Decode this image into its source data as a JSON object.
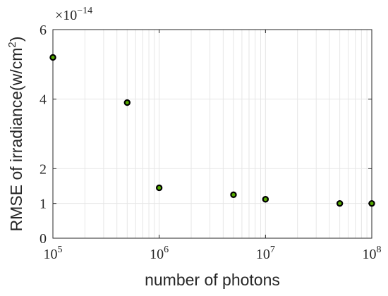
{
  "chart_data": {
    "type": "scatter",
    "x_scale": "log",
    "xlim": [
      100000,
      100000000
    ],
    "ylim": [
      0,
      6
    ],
    "y_multiplier_label": "×10",
    "y_multiplier_exp": "−14",
    "xlabel": "number of photons",
    "ylabel_main": "RMSE of irradiance(w/cm",
    "ylabel_sup": "2",
    "ylabel_close": ")",
    "grid": true,
    "marker_fill": "#55aa00",
    "marker_edge": "#000000",
    "x_ticks": [
      {
        "value": 100000,
        "base": "10",
        "exp": "5"
      },
      {
        "value": 1000000,
        "base": "10",
        "exp": "6"
      },
      {
        "value": 10000000,
        "base": "10",
        "exp": "7"
      },
      {
        "value": 100000000,
        "base": "10",
        "exp": "8"
      }
    ],
    "y_ticks": [
      {
        "value": 0,
        "label": "0"
      },
      {
        "value": 1,
        "label": "1"
      },
      {
        "value": 2,
        "label": "2"
      },
      {
        "value": 4,
        "label": "4"
      },
      {
        "value": 6,
        "label": "6"
      }
    ],
    "points": [
      {
        "x": 100000,
        "y": 5.2
      },
      {
        "x": 500000,
        "y": 3.9
      },
      {
        "x": 1000000,
        "y": 1.45
      },
      {
        "x": 5000000,
        "y": 1.25
      },
      {
        "x": 10000000,
        "y": 1.12
      },
      {
        "x": 50000000,
        "y": 1.0
      },
      {
        "x": 100000000,
        "y": 1.0
      }
    ]
  }
}
